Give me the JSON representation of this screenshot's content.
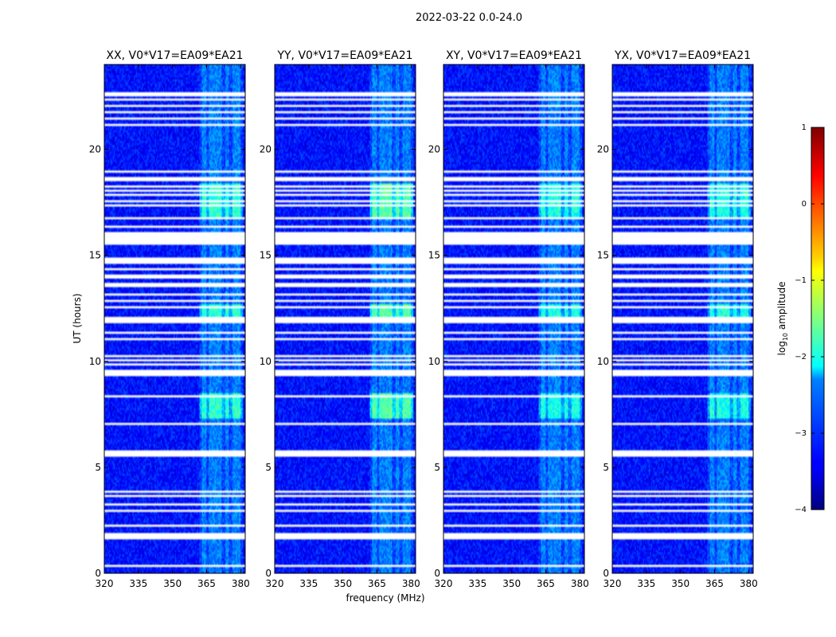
{
  "chart_data": {
    "type": "heatmap",
    "suptitle": "2022-03-22 0.0-24.0",
    "xlabel": "frequency (MHz)",
    "ylabel": "UT (hours)",
    "xlim": [
      320,
      382
    ],
    "ylim": [
      0,
      24
    ],
    "xticks": [
      "320",
      "335",
      "350",
      "365",
      "380"
    ],
    "yticks": [
      "0",
      "5",
      "10",
      "15",
      "20"
    ],
    "panels": [
      {
        "title": "XX, V0*V17=EA09*EA21",
        "pol": "XX"
      },
      {
        "title": "YY, V0*V17=EA09*EA21",
        "pol": "YY"
      },
      {
        "title": "XY, V0*V17=EA09*EA21",
        "pol": "XY"
      },
      {
        "title": "YX, V0*V17=EA09*EA21",
        "pol": "YX"
      }
    ],
    "colorbar": {
      "label": "log10 amplitude",
      "label_base": "log",
      "label_sub": "10",
      "label_rest": " amplitude",
      "ticks": [
        "1",
        "0",
        "−1",
        "−2",
        "−3",
        "−4"
      ],
      "range": [
        -4,
        1
      ]
    },
    "flagged_ut_bands": [
      [
        0.3,
        0.45
      ],
      [
        1.6,
        1.85
      ],
      [
        2.25,
        2.3
      ],
      [
        2.9,
        2.95
      ],
      [
        3.2,
        3.25
      ],
      [
        3.4,
        3.45
      ],
      [
        3.6,
        3.65
      ],
      [
        3.8,
        3.9
      ],
      [
        5.5,
        5.75
      ],
      [
        7.0,
        7.05
      ],
      [
        7.5,
        7.55
      ],
      [
        7.9,
        7.95
      ],
      [
        8.35,
        8.4
      ],
      [
        8.6,
        8.65
      ],
      [
        9.3,
        9.55
      ],
      [
        9.8,
        9.85
      ],
      [
        10.0,
        10.05
      ],
      [
        10.2,
        10.25
      ],
      [
        11.0,
        11.05
      ],
      [
        11.3,
        11.4
      ],
      [
        11.55,
        11.6
      ],
      [
        11.8,
        12.05
      ],
      [
        12.5,
        12.55
      ],
      [
        12.8,
        12.85
      ],
      [
        13.1,
        13.15
      ],
      [
        13.5,
        13.65
      ],
      [
        13.9,
        14.05
      ],
      [
        14.3,
        14.45
      ],
      [
        14.6,
        14.9
      ],
      [
        15.5,
        16.1
      ],
      [
        16.3,
        16.35
      ],
      [
        16.7,
        16.8
      ],
      [
        17.3,
        17.35
      ],
      [
        17.55,
        17.6
      ],
      [
        17.8,
        17.85
      ],
      [
        18.0,
        18.05
      ],
      [
        18.2,
        18.25
      ],
      [
        18.55,
        18.7
      ],
      [
        18.95,
        19.0
      ],
      [
        21.1,
        21.15
      ],
      [
        21.4,
        21.45
      ],
      [
        21.7,
        21.75
      ],
      [
        22.0,
        22.05
      ],
      [
        22.3,
        22.35
      ],
      [
        22.55,
        22.65
      ]
    ],
    "rfi_freq_mhz": [
      364,
      367,
      369,
      371,
      374,
      377,
      379
    ],
    "rfi_bright_ut_ranges": [
      [
        7.3,
        8.5
      ],
      [
        12.0,
        12.7
      ],
      [
        16.8,
        18.4
      ]
    ],
    "background_level": -3.3,
    "rfi_level": -2.3
  }
}
